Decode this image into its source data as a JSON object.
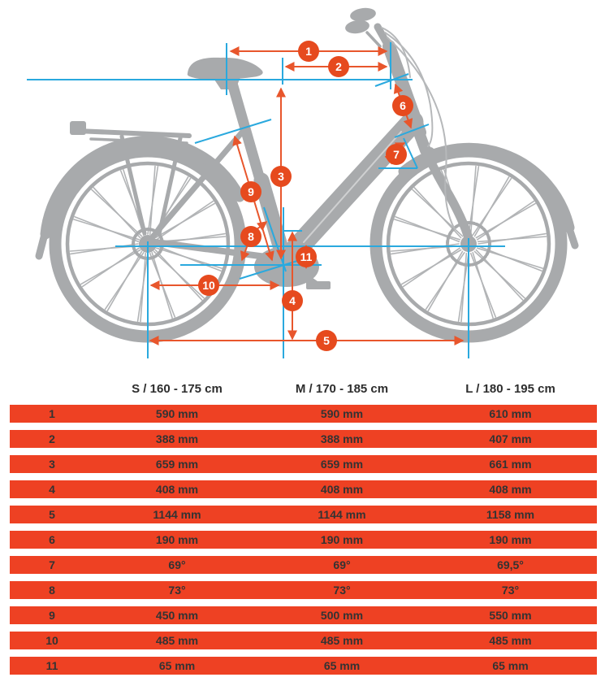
{
  "diagram": {
    "badges": [
      {
        "label": "1"
      },
      {
        "label": "2"
      },
      {
        "label": "3"
      },
      {
        "label": "4"
      },
      {
        "label": "5"
      },
      {
        "label": "6"
      },
      {
        "label": "7"
      },
      {
        "label": "8"
      },
      {
        "label": "9"
      },
      {
        "label": "10"
      },
      {
        "label": "11"
      }
    ],
    "colors": {
      "row_orange": "#ee4123",
      "badge_orange": "#e64a1e",
      "arrow_orange": "#e8562c",
      "reference_cyan": "#2aa9de",
      "bike_gray": "#a8aaac",
      "text_dark": "#333333"
    }
  },
  "table": {
    "size_headers": [
      "S / 160 - 175 cm",
      "M / 170 - 185 cm",
      "L / 180 - 195 cm"
    ],
    "rows": [
      {
        "label": "1",
        "s": "590 mm",
        "m": "590 mm",
        "l": "610 mm"
      },
      {
        "label": "2",
        "s": "388 mm",
        "m": "388 mm",
        "l": "407 mm"
      },
      {
        "label": "3",
        "s": "659 mm",
        "m": "659 mm",
        "l": "661 mm"
      },
      {
        "label": "4",
        "s": "408 mm",
        "m": "408 mm",
        "l": "408 mm"
      },
      {
        "label": "5",
        "s": "1144 mm",
        "m": "1144 mm",
        "l": "1158 mm"
      },
      {
        "label": "6",
        "s": "190 mm",
        "m": "190 mm",
        "l": "190 mm"
      },
      {
        "label": "7",
        "s": "69°",
        "m": "69°",
        "l": "69,5°"
      },
      {
        "label": "8",
        "s": "73°",
        "m": "73°",
        "l": "73°"
      },
      {
        "label": "9",
        "s": "450 mm",
        "m": "500 mm",
        "l": "550 mm"
      },
      {
        "label": "10",
        "s": "485 mm",
        "m": "485 mm",
        "l": "485 mm"
      },
      {
        "label": "11",
        "s": "65 mm",
        "m": "65 mm",
        "l": "65 mm"
      }
    ]
  }
}
